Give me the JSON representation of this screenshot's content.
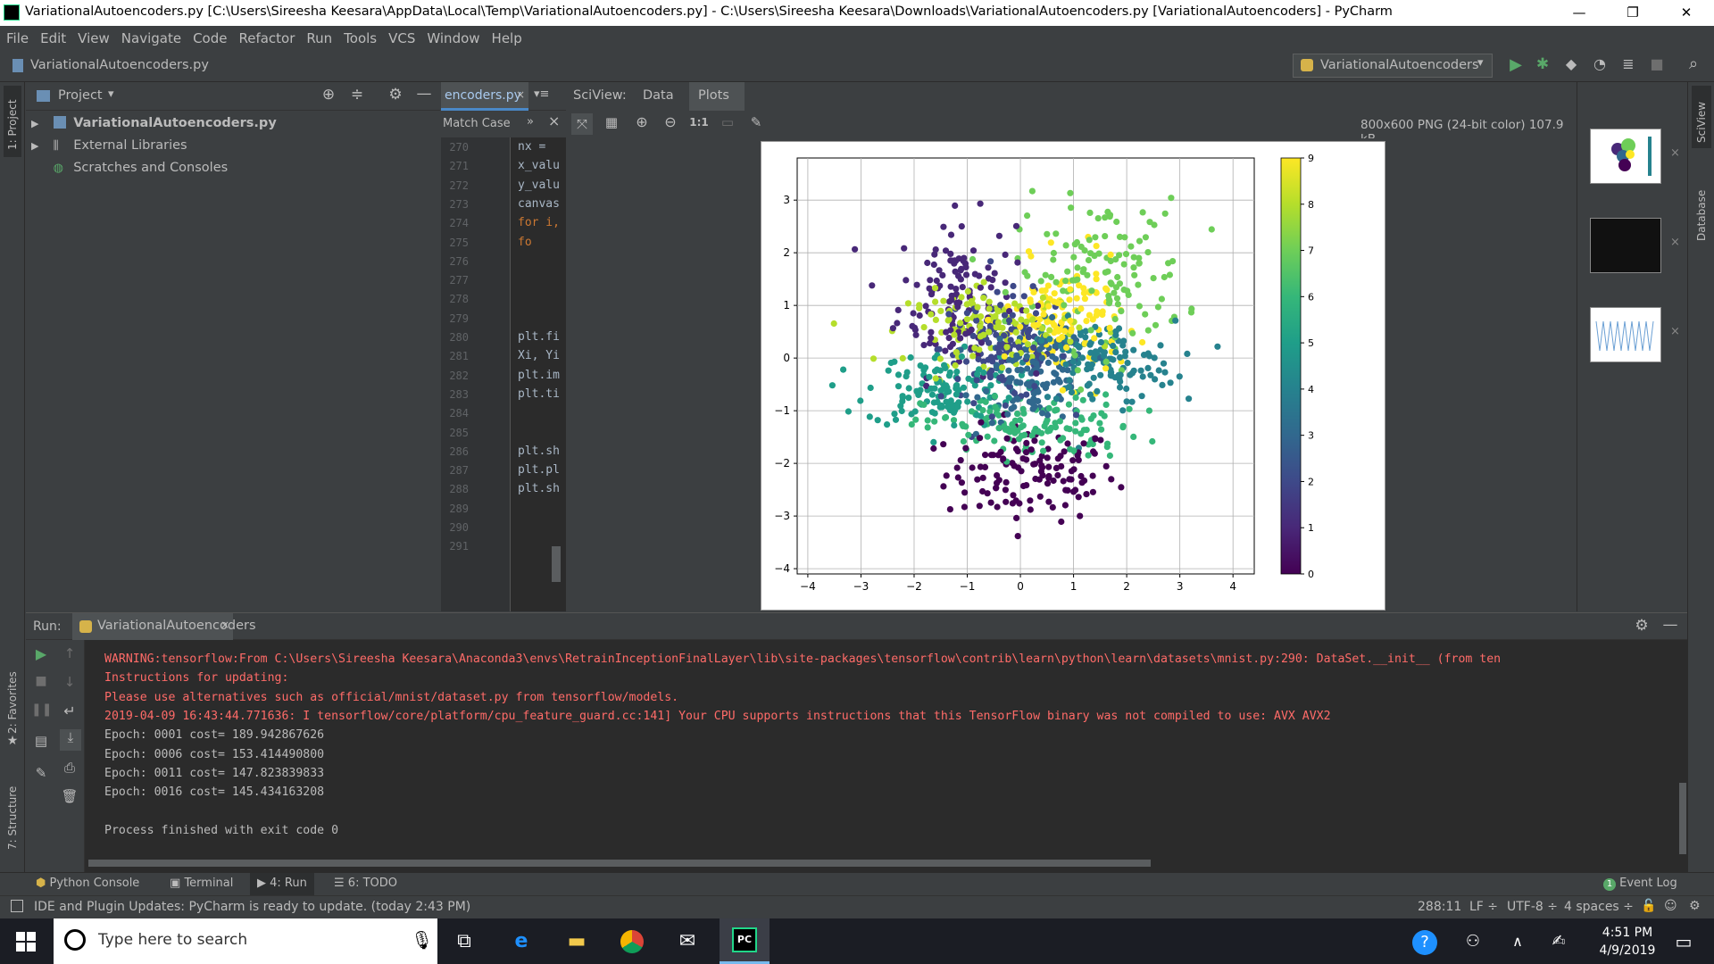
{
  "window": {
    "title": "VariationalAutoencoders.py [C:\\Users\\Sireesha Keesara\\AppData\\Local\\Temp\\VariationalAutoencoders.py] - C:\\Users\\Sireesha Keesara\\Downloads\\VariationalAutoencoders.py [VariationalAutoencoders] - PyCharm",
    "minimize": "—",
    "restore": "❐",
    "close": "✕"
  },
  "menu": [
    "File",
    "Edit",
    "View",
    "Navigate",
    "Code",
    "Refactor",
    "Run",
    "Tools",
    "VCS",
    "Window",
    "Help"
  ],
  "navbar": {
    "breadcrumb": "VariationalAutoencoders.py",
    "run_config": "VariationalAutoencoders"
  },
  "left_strip": {
    "project_tab": "1: Project",
    "favorites_tab": "2: Favorites",
    "structure_tab": "7: Structure"
  },
  "right_strip": {
    "sciview_tab": "SciView",
    "database_tab": "Database"
  },
  "project": {
    "header": "Project",
    "items": [
      {
        "label": "VariationalAutoencoders.py",
        "bold": true
      },
      {
        "label": "External Libraries"
      },
      {
        "label": "Scratches and Consoles"
      }
    ]
  },
  "editor": {
    "tab": "encoders.py",
    "find_label": "Match Case",
    "lines": [
      {
        "num": "270",
        "code": "nx ="
      },
      {
        "num": "271",
        "code": "x_valu"
      },
      {
        "num": "272",
        "code": "y_valu"
      },
      {
        "num": "273",
        "code": "canvas"
      },
      {
        "num": "274",
        "code": "for i,"
      },
      {
        "num": "275",
        "code": "    fo"
      },
      {
        "num": "276",
        "code": ""
      },
      {
        "num": "277",
        "code": ""
      },
      {
        "num": "278",
        "code": ""
      },
      {
        "num": "279",
        "code": ""
      },
      {
        "num": "280",
        "code": "plt.fi"
      },
      {
        "num": "281",
        "code": "Xi, Yi"
      },
      {
        "num": "282",
        "code": "plt.im"
      },
      {
        "num": "283",
        "code": "plt.ti"
      },
      {
        "num": "284",
        "code": ""
      },
      {
        "num": "285",
        "code": ""
      },
      {
        "num": "286",
        "code": "plt.sh"
      },
      {
        "num": "287",
        "code": "plt.pl"
      },
      {
        "num": "288",
        "code": "plt.sh"
      },
      {
        "num": "289",
        "code": ""
      },
      {
        "num": "290",
        "code": ""
      },
      {
        "num": "291",
        "code": ""
      }
    ]
  },
  "sciview": {
    "title": "SciView:",
    "tabs": [
      "Data",
      "Plots"
    ],
    "image_info": "800x600 PNG (24-bit color) 107.9 kB",
    "zoom_actual": "1:1"
  },
  "chart_data": {
    "type": "scatter",
    "title": "",
    "xlabel": "",
    "ylabel": "",
    "xlim": [
      -4.2,
      4.4
    ],
    "ylim": [
      -4.1,
      3.8
    ],
    "xticks": [
      "−4",
      "−3",
      "−2",
      "−1",
      "0",
      "1",
      "2",
      "3",
      "4"
    ],
    "yticks": [
      "−4",
      "−3",
      "−2",
      "−1",
      "0",
      "1",
      "2",
      "3"
    ],
    "grid": true,
    "colormap": "viridis",
    "colorbar": {
      "min": 0,
      "max": 9,
      "ticks": [
        "0",
        "1",
        "2",
        "3",
        "4",
        "5",
        "6",
        "7",
        "8",
        "9"
      ]
    },
    "clusters": [
      {
        "label": 0,
        "cx": 0.2,
        "cy": -2.2,
        "sx": 0.8,
        "sy": 0.45,
        "color": "#440154"
      },
      {
        "label": 1,
        "cx": -1.2,
        "cy": 1.2,
        "sx": 0.55,
        "sy": 0.75,
        "color": "#482878"
      },
      {
        "label": 2,
        "cx": -0.3,
        "cy": 0.2,
        "sx": 0.6,
        "sy": 0.5,
        "color": "#3e4989"
      },
      {
        "label": 3,
        "cx": 0.3,
        "cy": -0.3,
        "sx": 0.5,
        "sy": 0.45,
        "color": "#31688e"
      },
      {
        "label": 4,
        "cx": 1.5,
        "cy": -0.1,
        "sx": 0.7,
        "sy": 0.4,
        "color": "#26828e"
      },
      {
        "label": 5,
        "cx": -1.5,
        "cy": -0.6,
        "sx": 0.7,
        "sy": 0.35,
        "color": "#1f9e89"
      },
      {
        "label": 6,
        "cx": 0.2,
        "cy": -1.3,
        "sx": 1.0,
        "sy": 0.3,
        "color": "#35b779"
      },
      {
        "label": 7,
        "cx": 1.5,
        "cy": 1.6,
        "sx": 0.8,
        "sy": 0.7,
        "color": "#6ece58"
      },
      {
        "label": 8,
        "cx": -0.5,
        "cy": 0.6,
        "sx": 0.8,
        "sy": 0.35,
        "color": "#b5de2b"
      },
      {
        "label": 9,
        "cx": 0.8,
        "cy": 0.7,
        "sx": 0.55,
        "sy": 0.55,
        "color": "#fde725"
      }
    ]
  },
  "run": {
    "label": "Run:",
    "tab": "VariationalAutoencoders",
    "output": [
      {
        "text": "WARNING:tensorflow:From C:\\Users\\Sireesha Keesara\\Anaconda3\\envs\\RetrainInceptionFinalLayer\\lib\\site-packages\\tensorflow\\contrib\\learn\\python\\learn\\datasets\\mnist.py:290: DataSet.__init__ (from ten",
        "kind": "err"
      },
      {
        "text": "Instructions for updating:",
        "kind": "err"
      },
      {
        "text": "Please use alternatives such as official/mnist/dataset.py from tensorflow/models.",
        "kind": "err"
      },
      {
        "text": "2019-04-09 16:43:44.771636: I tensorflow/core/platform/cpu_feature_guard.cc:141] Your CPU supports instructions that this TensorFlow binary was not compiled to use: AVX AVX2",
        "kind": "err"
      },
      {
        "text": "Epoch: 0001 cost= 189.942867626",
        "kind": "std"
      },
      {
        "text": "Epoch: 0006 cost= 153.414490800",
        "kind": "std"
      },
      {
        "text": "Epoch: 0011 cost= 147.823839833",
        "kind": "std"
      },
      {
        "text": "Epoch: 0016 cost= 145.434163208",
        "kind": "std"
      },
      {
        "text": "",
        "kind": "std"
      },
      {
        "text": "Process finished with exit code 0",
        "kind": "std"
      }
    ]
  },
  "bottom_tabs": [
    "Python Console",
    "Terminal",
    "4: Run",
    "6: TODO"
  ],
  "event_log": "Event Log",
  "status": {
    "message": "IDE and Plugin Updates: PyCharm is ready to update. (today 2:43 PM)",
    "position": "288:11",
    "line_sep": "LF ÷",
    "encoding": "UTF-8 ÷",
    "indent": "4 spaces ÷"
  },
  "taskbar": {
    "search_placeholder": "Type here to search",
    "time": "4:51 PM",
    "date": "4/9/2019"
  }
}
